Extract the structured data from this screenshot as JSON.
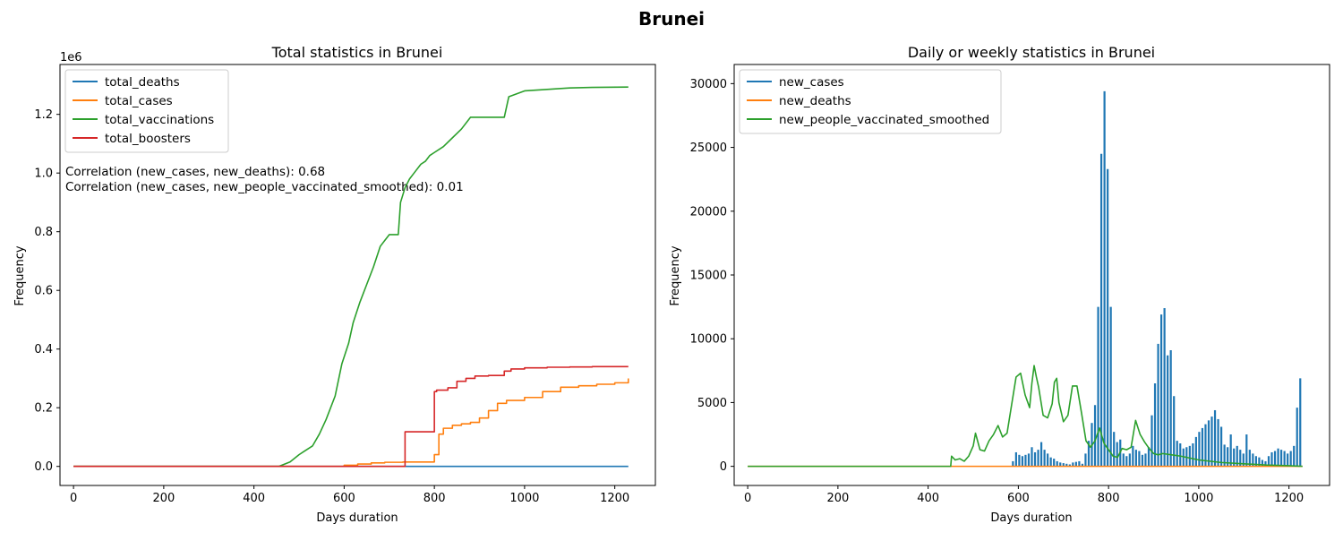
{
  "figure": {
    "title": "Brunei"
  },
  "colors": {
    "blue": "#1f77b4",
    "orange": "#ff7f0e",
    "green": "#2ca02c",
    "red": "#d62728"
  },
  "chart_data": [
    {
      "type": "line",
      "title": "Total statistics in Brunei",
      "xlabel": "Days duration",
      "ylabel": "Frequency",
      "y_offset_label": "1e6",
      "xlim": [
        -30,
        1290
      ],
      "ylim": [
        -0.065,
        1.37
      ],
      "xticks": [
        0,
        200,
        400,
        600,
        800,
        1000,
        1200
      ],
      "yticks": [
        0.0,
        0.2,
        0.4,
        0.6,
        0.8,
        1.0,
        1.2
      ],
      "ytick_labels": [
        "0.0",
        "0.2",
        "0.4",
        "0.6",
        "0.8",
        "1.0",
        "1.2"
      ],
      "grid": false,
      "legend_position": "upper-left",
      "annotations": [
        "Correlation (new_cases, new_deaths): 0.68",
        "Correlation (new_cases, new_people_vaccinated_smoothed): 0.01"
      ],
      "series": [
        {
          "name": "total_deaths",
          "color": "blue",
          "step": false,
          "x": [
            0,
            1230
          ],
          "y": [
            0.0,
            0.0002
          ]
        },
        {
          "name": "total_cases",
          "color": "orange",
          "step": true,
          "x": [
            0,
            570,
            600,
            630,
            660,
            690,
            730,
            780,
            800,
            810,
            820,
            840,
            860,
            880,
            900,
            920,
            940,
            960,
            1000,
            1040,
            1080,
            1120,
            1160,
            1200,
            1230
          ],
          "y": [
            0.0,
            0.0,
            0.004,
            0.008,
            0.012,
            0.014,
            0.015,
            0.015,
            0.04,
            0.11,
            0.13,
            0.14,
            0.145,
            0.15,
            0.165,
            0.19,
            0.215,
            0.225,
            0.235,
            0.255,
            0.27,
            0.275,
            0.28,
            0.285,
            0.3
          ]
        },
        {
          "name": "total_vaccinations",
          "color": "green",
          "step": false,
          "x": [
            0,
            455,
            480,
            500,
            510,
            530,
            545,
            560,
            580,
            595,
            610,
            620,
            635,
            650,
            665,
            680,
            690,
            700,
            720,
            725,
            735,
            745,
            755,
            770,
            780,
            790,
            800,
            820,
            840,
            860,
            880,
            900,
            955,
            965,
            1000,
            1050,
            1100,
            1150,
            1230
          ],
          "y": [
            0.0,
            0.0,
            0.015,
            0.04,
            0.05,
            0.07,
            0.11,
            0.16,
            0.24,
            0.35,
            0.42,
            0.49,
            0.56,
            0.62,
            0.68,
            0.75,
            0.77,
            0.79,
            0.79,
            0.9,
            0.95,
            0.98,
            1.0,
            1.03,
            1.04,
            1.06,
            1.07,
            1.09,
            1.12,
            1.15,
            1.19,
            1.19,
            1.19,
            1.26,
            1.28,
            1.285,
            1.29,
            1.292,
            1.293
          ]
        },
        {
          "name": "total_boosters",
          "color": "red",
          "step": true,
          "x": [
            0,
            735,
            800,
            805,
            830,
            850,
            870,
            890,
            920,
            955,
            970,
            1000,
            1050,
            1100,
            1150,
            1230
          ],
          "y": [
            0.0,
            0.118,
            0.255,
            0.26,
            0.268,
            0.29,
            0.3,
            0.308,
            0.31,
            0.325,
            0.332,
            0.336,
            0.338,
            0.339,
            0.34,
            0.34
          ]
        }
      ]
    },
    {
      "type": "line",
      "title": "Daily or weekly statistics in Brunei",
      "xlabel": "Days duration",
      "ylabel": "Frequency",
      "xlim": [
        -30,
        1290
      ],
      "ylim": [
        -1500,
        31500
      ],
      "xticks": [
        0,
        200,
        400,
        600,
        800,
        1000,
        1200
      ],
      "yticks": [
        0,
        5000,
        10000,
        15000,
        20000,
        25000,
        30000
      ],
      "ytick_labels": [
        "0",
        "5000",
        "10000",
        "15000",
        "20000",
        "25000",
        "30000"
      ],
      "grid": false,
      "legend_position": "upper-left",
      "series": [
        {
          "name": "new_cases",
          "color": "blue",
          "style": "weekly-spikes",
          "x": [
            588,
            595,
            602,
            609,
            616,
            623,
            630,
            637,
            644,
            651,
            658,
            665,
            672,
            679,
            686,
            693,
            700,
            707,
            714,
            721,
            728,
            735,
            742,
            749,
            756,
            763,
            770,
            777,
            784,
            791,
            798,
            805,
            812,
            819,
            826,
            833,
            840,
            847,
            854,
            861,
            868,
            875,
            882,
            889,
            896,
            903,
            910,
            917,
            924,
            931,
            938,
            945,
            952,
            959,
            966,
            973,
            980,
            987,
            994,
            1001,
            1008,
            1015,
            1022,
            1029,
            1036,
            1043,
            1050,
            1057,
            1064,
            1071,
            1078,
            1085,
            1092,
            1099,
            1106,
            1113,
            1120,
            1127,
            1134,
            1141,
            1148,
            1155,
            1162,
            1169,
            1176,
            1183,
            1190,
            1197,
            1204,
            1211,
            1218,
            1225
          ],
          "y": [
            400,
            1100,
            900,
            800,
            900,
            1000,
            1500,
            1100,
            1300,
            1900,
            1300,
            1000,
            700,
            600,
            400,
            300,
            250,
            200,
            150,
            300,
            350,
            400,
            200,
            1000,
            2000,
            3400,
            4800,
            12500,
            24500,
            29400,
            23300,
            12500,
            2700,
            1900,
            2100,
            1000,
            800,
            1000,
            1600,
            1300,
            1200,
            900,
            1000,
            1500,
            4000,
            6500,
            9600,
            11900,
            12400,
            8700,
            9100,
            5500,
            2000,
            1800,
            1400,
            1500,
            1600,
            1800,
            2300,
            2700,
            3000,
            3300,
            3600,
            3900,
            4400,
            3700,
            3100,
            1700,
            1500,
            2500,
            1400,
            1600,
            1300,
            1000,
            2500,
            1300,
            1000,
            800,
            700,
            500,
            400,
            800,
            1100,
            1200,
            1400,
            1300,
            1200,
            1000,
            1200,
            1600,
            4600,
            6900
          ]
        },
        {
          "name": "new_deaths",
          "color": "orange",
          "step": false,
          "x": [
            0,
            1230
          ],
          "y": [
            0,
            0
          ]
        },
        {
          "name": "new_people_vaccinated_smoothed",
          "color": "green",
          "step": false,
          "x": [
            0,
            450,
            452,
            460,
            470,
            480,
            490,
            500,
            505,
            515,
            525,
            535,
            545,
            555,
            565,
            575,
            585,
            595,
            605,
            615,
            625,
            630,
            635,
            640,
            645,
            655,
            665,
            675,
            680,
            685,
            690,
            700,
            710,
            720,
            730,
            740,
            750,
            760,
            770,
            780,
            790,
            800,
            810,
            820,
            830,
            840,
            850,
            860,
            870,
            880,
            890,
            900,
            910,
            920,
            940,
            960,
            1000,
            1050,
            1100,
            1150,
            1200,
            1230
          ],
          "y": [
            0,
            0,
            800,
            500,
            600,
            400,
            800,
            1600,
            2600,
            1300,
            1200,
            2000,
            2500,
            3200,
            2300,
            2600,
            4800,
            7000,
            7300,
            5600,
            4600,
            6500,
            7900,
            7000,
            6200,
            4000,
            3800,
            4900,
            6600,
            6900,
            5000,
            3500,
            4000,
            6300,
            6300,
            4200,
            2000,
            1500,
            2000,
            3000,
            1800,
            1300,
            800,
            700,
            1400,
            1300,
            1500,
            3600,
            2500,
            1900,
            1400,
            1000,
            900,
            1000,
            900,
            800,
            500,
            300,
            200,
            100,
            50,
            0
          ]
        }
      ]
    }
  ]
}
